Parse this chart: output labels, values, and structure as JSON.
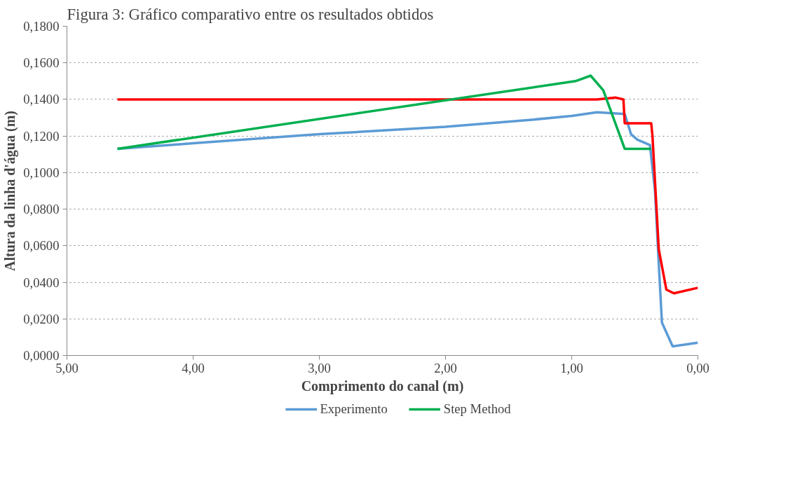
{
  "chart_data": {
    "type": "line",
    "title": "Figura 3: Gráfico comparativo entre os resultados obtidos",
    "xlabel": "Comprimento do canal (m)",
    "ylabel": "Altura da linha d'água (m)",
    "xlim": [
      5,
      0
    ],
    "xticks": [
      {
        "value": 5,
        "label": "5,00"
      },
      {
        "value": 4,
        "label": "4,00"
      },
      {
        "value": 3,
        "label": "3,00"
      },
      {
        "value": 2,
        "label": "2,00"
      },
      {
        "value": 1,
        "label": "1,00"
      },
      {
        "value": 0,
        "label": "0,00"
      }
    ],
    "ylim": [
      0,
      0.18
    ],
    "yticks": [
      {
        "value": 0,
        "label": "0,0000"
      },
      {
        "value": 0.02,
        "label": "0,0200"
      },
      {
        "value": 0.04,
        "label": "0,0400"
      },
      {
        "value": 0.06,
        "label": "0,0600"
      },
      {
        "value": 0.08,
        "label": "0,0800"
      },
      {
        "value": 0.1,
        "label": "0,1000"
      },
      {
        "value": 0.12,
        "label": "0,1200"
      },
      {
        "value": 0.14,
        "label": "0,1400"
      },
      {
        "value": 0.16,
        "label": "0,1600"
      },
      {
        "value": 0.18,
        "label": "0,1800"
      }
    ],
    "grid": "y",
    "legend": "bottom",
    "line_style": "solid",
    "marker": "none",
    "series": [
      {
        "name": "Experimento",
        "color": "#5b9bd5",
        "x": [
          4.6,
          4.0,
          3.0,
          2.0,
          1.3,
          1.0,
          0.8,
          0.58,
          0.53,
          0.48,
          0.38,
          0.34,
          0.31,
          0.285,
          0.2,
          0.0
        ],
        "values": [
          0.113,
          0.116,
          0.121,
          0.125,
          0.129,
          0.131,
          0.133,
          0.132,
          0.121,
          0.118,
          0.115,
          0.09,
          0.05,
          0.018,
          0.005,
          0.007
        ]
      },
      {
        "color": "#ff0000",
        "x": [
          4.6,
          3.0,
          1.0,
          0.8,
          0.65,
          0.59,
          0.58,
          0.53,
          0.52,
          0.37,
          0.36,
          0.31,
          0.25,
          0.19,
          0.0
        ],
        "values": [
          0.14,
          0.14,
          0.14,
          0.14,
          0.141,
          0.14,
          0.127,
          0.127,
          0.127,
          0.127,
          0.12,
          0.058,
          0.036,
          0.034,
          0.037
        ]
      },
      {
        "name": "Step Method",
        "color": "#00b050",
        "x": [
          4.6,
          0.97,
          0.85,
          0.75,
          0.58,
          0.37
        ],
        "values": [
          0.113,
          0.15,
          0.153,
          0.145,
          0.113,
          0.113
        ]
      }
    ]
  }
}
